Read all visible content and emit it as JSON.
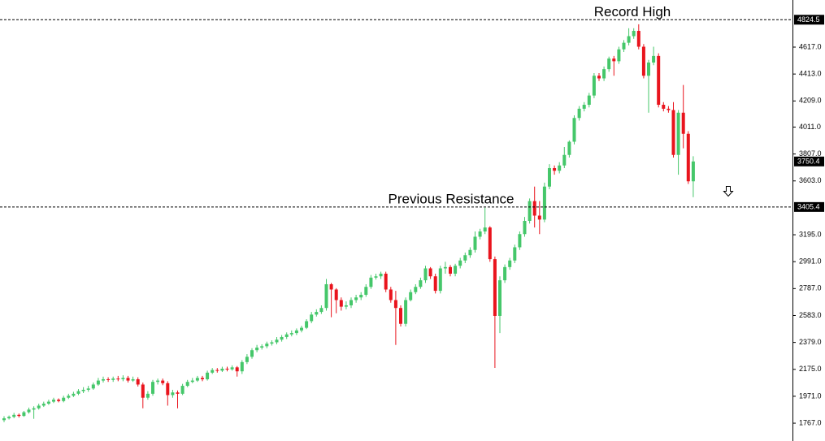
{
  "chart_data": {
    "type": "candlestick",
    "up_color": "#45c76a",
    "down_color": "#e9141d",
    "ylim": [
      1712,
      4974
    ],
    "yticks": [
      {
        "value": 4617,
        "label": "4617.0"
      },
      {
        "value": 4413,
        "label": "4413.0"
      },
      {
        "value": 4209,
        "label": "4209.0"
      },
      {
        "value": 4011,
        "label": "4011.0"
      },
      {
        "value": 3807,
        "label": "3807.0"
      },
      {
        "value": 3603,
        "label": "3603.0"
      },
      {
        "value": 3195,
        "label": "3195.0"
      },
      {
        "value": 2991,
        "label": "2991.0"
      },
      {
        "value": 2787,
        "label": "2787.0"
      },
      {
        "value": 2583,
        "label": "2583.0"
      },
      {
        "value": 2379,
        "label": "2379.0"
      },
      {
        "value": 2175,
        "label": "2175.0"
      },
      {
        "value": 1971,
        "label": "1971.0"
      },
      {
        "value": 1767,
        "label": "1767.0"
      }
    ],
    "annotations": [
      {
        "label": "Record High",
        "value": 4824.5
      },
      {
        "label": "Previous Resistance",
        "value": 3405.4
      }
    ],
    "open": [
      1790,
      1804,
      1815,
      1830,
      1822,
      1850,
      1870,
      1880,
      1900,
      1915,
      1930,
      1945,
      1935,
      1960,
      1975,
      1990,
      2010,
      2020,
      2030,
      2060,
      2090,
      2100,
      2095,
      2105,
      2100,
      2110,
      2090,
      2100,
      2060,
      1960,
      1990,
      2080,
      2090,
      2070,
      1980,
      2000,
      1990,
      2050,
      2080,
      2090,
      2110,
      2100,
      2150,
      2170,
      2165,
      2180,
      2175,
      2190,
      2160,
      2230,
      2270,
      2320,
      2340,
      2350,
      2370,
      2380,
      2400,
      2420,
      2440,
      2450,
      2470,
      2490,
      2540,
      2590,
      2610,
      2640,
      2820,
      2780,
      2700,
      2650,
      2660,
      2700,
      2720,
      2740,
      2800,
      2870,
      2880,
      2900,
      2780,
      2700,
      2640,
      2520,
      2700,
      2760,
      2800,
      2850,
      2940,
      2880,
      2770,
      2940,
      2950,
      2900,
      2960,
      3000,
      3040,
      3080,
      3180,
      3220,
      3250,
      3010,
      2580,
      2850,
      2950,
      3000,
      3100,
      3200,
      3300,
      3450,
      3340,
      3310,
      3560,
      3700,
      3680,
      3720,
      3800,
      3900,
      4080,
      4150,
      4180,
      4250,
      4400,
      4380,
      4450,
      4530,
      4510,
      4600,
      4650,
      4700,
      4740,
      4620,
      4400,
      4500,
      4550,
      4180,
      4150,
      4140,
      3800,
      4120,
      3960,
      3600
    ],
    "high": [
      1820,
      1825,
      1845,
      1840,
      1860,
      1885,
      1895,
      1915,
      1930,
      1945,
      1960,
      1955,
      1975,
      1990,
      2005,
      2025,
      2040,
      2050,
      2075,
      2110,
      2120,
      2115,
      2120,
      2125,
      2130,
      2125,
      2120,
      2115,
      2075,
      2010,
      2095,
      2105,
      2105,
      2085,
      2020,
      2015,
      2065,
      2095,
      2110,
      2125,
      2125,
      2165,
      2185,
      2185,
      2195,
      2195,
      2205,
      2200,
      2245,
      2290,
      2335,
      2360,
      2365,
      2385,
      2395,
      2420,
      2435,
      2455,
      2470,
      2485,
      2505,
      2555,
      2610,
      2630,
      2660,
      2860,
      2830,
      2790,
      2720,
      2690,
      2720,
      2740,
      2760,
      2820,
      2890,
      2900,
      2915,
      2915,
      2800,
      2770,
      2660,
      2720,
      2780,
      2820,
      2870,
      2960,
      2950,
      2900,
      2960,
      2990,
      2965,
      2975,
      3020,
      3060,
      3100,
      3220,
      3240,
      3400,
      3260,
      3030,
      2880,
      2970,
      3020,
      3120,
      3220,
      3330,
      3470,
      3560,
      3450,
      3590,
      3730,
      3720,
      3745,
      3860,
      3910,
      4100,
      4170,
      4200,
      4270,
      4420,
      4420,
      4470,
      4545,
      4550,
      4620,
      4670,
      4760,
      4760,
      4790,
      4640,
      4520,
      4620,
      4570,
      4200,
      4170,
      4200,
      4140,
      4330,
      3980,
      3790
    ],
    "low": [
      1775,
      1795,
      1805,
      1810,
      1815,
      1840,
      1800,
      1870,
      1890,
      1905,
      1920,
      1925,
      1925,
      1950,
      1965,
      1980,
      1995,
      2005,
      2020,
      2050,
      2075,
      2080,
      2080,
      2085,
      2085,
      2075,
      2080,
      2045,
      1880,
      1945,
      1975,
      2060,
      2055,
      1900,
      1960,
      1880,
      1980,
      2040,
      2070,
      2080,
      2085,
      2090,
      2140,
      2150,
      2155,
      2160,
      2165,
      2120,
      2140,
      2215,
      2255,
      2305,
      2325,
      2335,
      2355,
      2365,
      2385,
      2405,
      2425,
      2435,
      2455,
      2480,
      2525,
      2575,
      2595,
      2620,
      2570,
      2600,
      2620,
      2630,
      2640,
      2680,
      2700,
      2725,
      2785,
      2855,
      2860,
      2760,
      2680,
      2360,
      2500,
      2500,
      2690,
      2745,
      2785,
      2830,
      2860,
      2750,
      2750,
      2900,
      2880,
      2880,
      2940,
      2980,
      3020,
      3060,
      3160,
      3200,
      2990,
      2186,
      2450,
      2830,
      2930,
      2980,
      3080,
      3180,
      3280,
      3250,
      3200,
      3290,
      3540,
      3650,
      3660,
      3700,
      3780,
      3880,
      4060,
      4130,
      4160,
      4230,
      4360,
      4360,
      4430,
      4400,
      4490,
      4580,
      4630,
      4680,
      4600,
      4380,
      4120,
      4480,
      4160,
      4130,
      4120,
      3780,
      3650,
      3850,
      3580,
      3480
    ],
    "close": [
      1804,
      1815,
      1830,
      1822,
      1850,
      1870,
      1880,
      1900,
      1915,
      1930,
      1945,
      1935,
      1960,
      1975,
      1990,
      2010,
      2020,
      2030,
      2060,
      2090,
      2100,
      2095,
      2105,
      2100,
      2110,
      2090,
      2100,
      2060,
      1960,
      1990,
      2080,
      2090,
      2070,
      1980,
      2000,
      1990,
      2050,
      2080,
      2090,
      2110,
      2100,
      2150,
      2170,
      2165,
      2180,
      2175,
      2190,
      2160,
      2230,
      2270,
      2320,
      2340,
      2350,
      2370,
      2380,
      2400,
      2420,
      2440,
      2450,
      2470,
      2490,
      2540,
      2590,
      2610,
      2640,
      2820,
      2780,
      2700,
      2650,
      2660,
      2700,
      2720,
      2740,
      2800,
      2870,
      2880,
      2900,
      2780,
      2700,
      2640,
      2520,
      2700,
      2760,
      2800,
      2850,
      2940,
      2880,
      2770,
      2940,
      2950,
      2900,
      2960,
      3000,
      3040,
      3080,
      3180,
      3220,
      3250,
      3010,
      2580,
      2850,
      2950,
      3000,
      3100,
      3200,
      3300,
      3450,
      3340,
      3310,
      3560,
      3700,
      3680,
      3720,
      3800,
      3900,
      4080,
      4150,
      4180,
      4250,
      4400,
      4380,
      4450,
      4530,
      4510,
      4600,
      4650,
      4700,
      4740,
      4620,
      4400,
      4500,
      4550,
      4180,
      4150,
      4140,
      3800,
      4120,
      3960,
      3600,
      3750.4
    ]
  }
}
